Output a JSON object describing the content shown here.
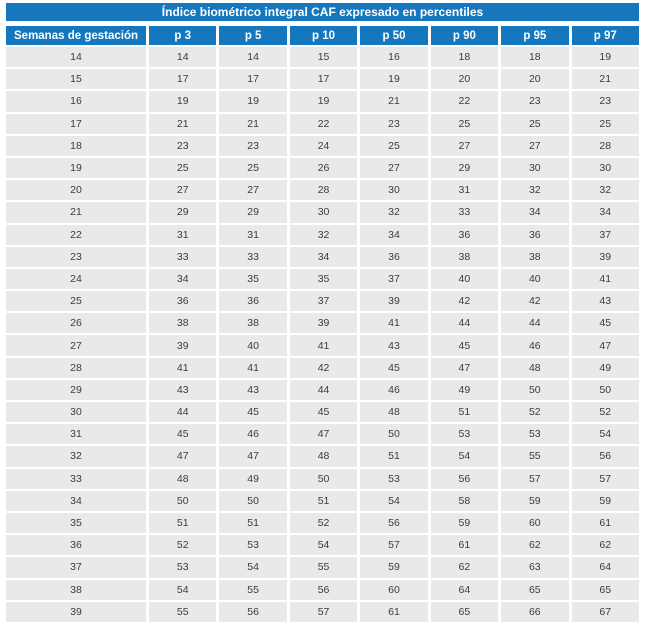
{
  "title": "Índice biométrico integral CAF expresado en percentiles",
  "headers": [
    "Semanas de gestación",
    "p 3",
    "p 5",
    "p 10",
    "p 50",
    "p 90",
    "p 95",
    "p 97"
  ],
  "rows": [
    [
      "14",
      "14",
      "14",
      "15",
      "16",
      "18",
      "18",
      "19"
    ],
    [
      "15",
      "17",
      "17",
      "17",
      "19",
      "20",
      "20",
      "21"
    ],
    [
      "16",
      "19",
      "19",
      "19",
      "21",
      "22",
      "23",
      "23"
    ],
    [
      "17",
      "21",
      "21",
      "22",
      "23",
      "25",
      "25",
      "25"
    ],
    [
      "18",
      "23",
      "23",
      "24",
      "25",
      "27",
      "27",
      "28"
    ],
    [
      "19",
      "25",
      "25",
      "26",
      "27",
      "29",
      "30",
      "30"
    ],
    [
      "20",
      "27",
      "27",
      "28",
      "30",
      "31",
      "32",
      "32"
    ],
    [
      "21",
      "29",
      "29",
      "30",
      "32",
      "33",
      "34",
      "34"
    ],
    [
      "22",
      "31",
      "31",
      "32",
      "34",
      "36",
      "36",
      "37"
    ],
    [
      "23",
      "33",
      "33",
      "34",
      "36",
      "38",
      "38",
      "39"
    ],
    [
      "24",
      "34",
      "35",
      "35",
      "37",
      "40",
      "40",
      "41"
    ],
    [
      "25",
      "36",
      "36",
      "37",
      "39",
      "42",
      "42",
      "43"
    ],
    [
      "26",
      "38",
      "38",
      "39",
      "41",
      "44",
      "44",
      "45"
    ],
    [
      "27",
      "39",
      "40",
      "41",
      "43",
      "45",
      "46",
      "47"
    ],
    [
      "28",
      "41",
      "41",
      "42",
      "45",
      "47",
      "48",
      "49"
    ],
    [
      "29",
      "43",
      "43",
      "44",
      "46",
      "49",
      "50",
      "50"
    ],
    [
      "30",
      "44",
      "45",
      "45",
      "48",
      "51",
      "52",
      "52"
    ],
    [
      "31",
      "45",
      "46",
      "47",
      "50",
      "53",
      "53",
      "54"
    ],
    [
      "32",
      "47",
      "47",
      "48",
      "51",
      "54",
      "55",
      "56"
    ],
    [
      "33",
      "48",
      "49",
      "50",
      "53",
      "56",
      "57",
      "57"
    ],
    [
      "34",
      "50",
      "50",
      "51",
      "54",
      "58",
      "59",
      "59"
    ],
    [
      "35",
      "51",
      "51",
      "52",
      "56",
      "59",
      "60",
      "61"
    ],
    [
      "36",
      "52",
      "53",
      "54",
      "57",
      "61",
      "62",
      "62"
    ],
    [
      "37",
      "53",
      "54",
      "55",
      "59",
      "62",
      "63",
      "64"
    ],
    [
      "38",
      "54",
      "55",
      "56",
      "60",
      "64",
      "65",
      "65"
    ],
    [
      "39",
      "55",
      "56",
      "57",
      "61",
      "65",
      "66",
      "67"
    ]
  ],
  "colors": {
    "header_bg": "#1577bd",
    "cell_bg": "#e8e9ea",
    "text": "#3c3c3c"
  }
}
